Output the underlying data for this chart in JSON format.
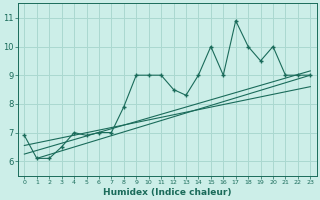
{
  "xlabel": "Humidex (Indice chaleur)",
  "ylabel": "",
  "xlim": [
    -0.5,
    23.5
  ],
  "ylim": [
    5.5,
    11.5
  ],
  "yticks": [
    6,
    7,
    8,
    9,
    10,
    11
  ],
  "xticks": [
    0,
    1,
    2,
    3,
    4,
    5,
    6,
    7,
    8,
    9,
    10,
    11,
    12,
    13,
    14,
    15,
    16,
    17,
    18,
    19,
    20,
    21,
    22,
    23
  ],
  "bg_color": "#cceee8",
  "line_color": "#1a6b5a",
  "grid_color": "#aad8d0",
  "main_data_x": [
    0,
    1,
    2,
    3,
    4,
    5,
    6,
    7,
    8,
    9,
    10,
    11,
    12,
    13,
    14,
    15,
    16,
    17,
    18,
    19,
    20,
    21,
    22,
    23
  ],
  "main_data_y": [
    6.9,
    6.1,
    6.1,
    6.5,
    7.0,
    6.9,
    7.0,
    7.0,
    7.9,
    9.0,
    9.0,
    9.0,
    8.5,
    8.3,
    9.0,
    10.0,
    9.0,
    10.9,
    10.0,
    9.5,
    10.0,
    9.0,
    9.0,
    9.0
  ],
  "reg_line1_x": [
    0,
    23
  ],
  "reg_line1_y": [
    6.25,
    9.15
  ],
  "reg_line2_x": [
    0,
    23
  ],
  "reg_line2_y": [
    6.55,
    8.6
  ],
  "reg_line3_x": [
    1,
    23
  ],
  "reg_line3_y": [
    6.1,
    9.0
  ]
}
